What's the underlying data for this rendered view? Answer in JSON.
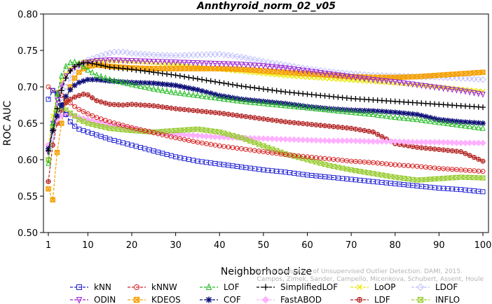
{
  "chart_data": {
    "type": "line",
    "title": "Annthyroid_norm_02_v05",
    "xlabel": "Neighborhood size",
    "ylabel": "ROC AUC",
    "xlim": [
      1,
      100
    ],
    "ylim": [
      0.5,
      0.8
    ],
    "x_ticks": [
      1,
      10,
      20,
      30,
      40,
      50,
      60,
      70,
      80,
      90,
      100
    ],
    "y_ticks": [
      "0.50",
      "0.55",
      "0.60",
      "0.65",
      "0.70",
      "0.75",
      "0.80"
    ],
    "grid": false,
    "legend_position": "bottom",
    "watermark": [
      "Campos, Zimek, Sander, Campello, Micenkova, Schubert, Assent, Houle",
      "On the Evaluation of Unsupervised Outlier Detection. DAMI, 2015."
    ],
    "series": [
      {
        "name": "kNN",
        "color": "#1f1fd4",
        "marker": "square",
        "x": [
          1,
          2,
          3,
          4,
          5,
          6,
          7,
          8,
          10,
          12,
          15,
          20,
          25,
          30,
          35,
          40,
          45,
          50,
          55,
          60,
          65,
          70,
          75,
          80,
          85,
          90,
          95,
          100
        ],
        "values": [
          0.683,
          0.695,
          0.69,
          0.675,
          0.662,
          0.652,
          0.646,
          0.642,
          0.638,
          0.634,
          0.628,
          0.62,
          0.612,
          0.604,
          0.598,
          0.594,
          0.59,
          0.586,
          0.583,
          0.579,
          0.576,
          0.573,
          0.57,
          0.567,
          0.564,
          0.561,
          0.559,
          0.556
        ]
      },
      {
        "name": "kNNW",
        "color": "#d62020",
        "marker": "circle",
        "x": [
          1,
          2,
          3,
          4,
          5,
          6,
          7,
          8,
          10,
          12,
          15,
          20,
          25,
          30,
          35,
          40,
          45,
          50,
          55,
          60,
          65,
          70,
          75,
          80,
          85,
          90,
          95,
          100
        ],
        "values": [
          0.7,
          0.695,
          0.692,
          0.688,
          0.683,
          0.678,
          0.673,
          0.669,
          0.663,
          0.658,
          0.652,
          0.644,
          0.637,
          0.63,
          0.624,
          0.619,
          0.615,
          0.611,
          0.607,
          0.604,
          0.601,
          0.598,
          0.596,
          0.593,
          0.591,
          0.588,
          0.586,
          0.584
        ]
      },
      {
        "name": "LOF",
        "color": "#22bb22",
        "marker": "triangle-up",
        "x": [
          1,
          2,
          3,
          4,
          5,
          6,
          7,
          8,
          9,
          10,
          12,
          15,
          20,
          25,
          30,
          35,
          40,
          45,
          50,
          55,
          60,
          65,
          70,
          75,
          80,
          85,
          90,
          95,
          100
        ],
        "values": [
          0.595,
          0.65,
          0.69,
          0.715,
          0.728,
          0.733,
          0.734,
          0.732,
          0.728,
          0.723,
          0.716,
          0.71,
          0.703,
          0.697,
          0.692,
          0.688,
          0.684,
          0.68,
          0.677,
          0.674,
          0.671,
          0.668,
          0.665,
          0.662,
          0.658,
          0.655,
          0.651,
          0.647,
          0.643
        ]
      },
      {
        "name": "SimplifiedLOF",
        "color": "#000000",
        "marker": "plus",
        "x": [
          1,
          2,
          3,
          4,
          5,
          6,
          7,
          8,
          9,
          10,
          12,
          15,
          20,
          25,
          30,
          35,
          40,
          45,
          50,
          55,
          60,
          65,
          70,
          75,
          80,
          85,
          90,
          95,
          100
        ],
        "values": [
          0.612,
          0.64,
          0.67,
          0.695,
          0.712,
          0.722,
          0.728,
          0.731,
          0.733,
          0.733,
          0.731,
          0.727,
          0.724,
          0.72,
          0.716,
          0.711,
          0.706,
          0.701,
          0.697,
          0.693,
          0.69,
          0.687,
          0.684,
          0.682,
          0.68,
          0.678,
          0.676,
          0.674,
          0.672
        ]
      },
      {
        "name": "LoOP",
        "color": "#e8e800",
        "marker": "x",
        "x": [
          1,
          2,
          3,
          4,
          5,
          6,
          7,
          8,
          9,
          10,
          12,
          15,
          20,
          25,
          30,
          35,
          40,
          45,
          50,
          55,
          60,
          65,
          70,
          75,
          80,
          85,
          90,
          95,
          100
        ],
        "values": [
          0.62,
          0.66,
          0.69,
          0.708,
          0.718,
          0.725,
          0.729,
          0.732,
          0.734,
          0.735,
          0.736,
          0.736,
          0.735,
          0.733,
          0.73,
          0.727,
          0.724,
          0.721,
          0.718,
          0.715,
          0.713,
          0.711,
          0.709,
          0.707,
          0.705,
          0.703,
          0.7,
          0.697,
          0.694
        ]
      },
      {
        "name": "LDOF",
        "color": "#bfbfff",
        "marker": "diamond",
        "x": [
          1,
          2,
          3,
          4,
          5,
          6,
          7,
          8,
          9,
          10,
          12,
          14,
          16,
          18,
          20,
          25,
          30,
          35,
          40,
          45,
          50,
          55,
          60,
          65,
          70,
          75,
          80,
          85,
          90,
          95,
          100
        ],
        "values": [
          0.6,
          0.63,
          0.66,
          0.685,
          0.7,
          0.712,
          0.722,
          0.729,
          0.734,
          0.737,
          0.741,
          0.745,
          0.748,
          0.748,
          0.746,
          0.744,
          0.743,
          0.744,
          0.745,
          0.741,
          0.735,
          0.73,
          0.725,
          0.721,
          0.718,
          0.716,
          0.715,
          0.714,
          0.713,
          0.712,
          0.71
        ]
      },
      {
        "name": "ODIN",
        "color": "#9a20d0",
        "marker": "triangle-down",
        "x": [
          1,
          2,
          3,
          4,
          5,
          6,
          7,
          8,
          9,
          10,
          12,
          15,
          20,
          25,
          30,
          35,
          40,
          45,
          50,
          55,
          60,
          65,
          70,
          75,
          80,
          85,
          90,
          95,
          100
        ],
        "values": [
          0.61,
          0.65,
          0.682,
          0.702,
          0.715,
          0.722,
          0.727,
          0.73,
          0.732,
          0.734,
          0.736,
          0.737,
          0.736,
          0.735,
          0.734,
          0.733,
          0.732,
          0.731,
          0.729,
          0.726,
          0.722,
          0.718,
          0.714,
          0.71,
          0.707,
          0.703,
          0.699,
          0.695,
          0.69
        ]
      },
      {
        "name": "KDEOS",
        "color": "#f5a000",
        "marker": "square-cross",
        "x": [
          1,
          2,
          3,
          4,
          5,
          6,
          7,
          8,
          9,
          10,
          12,
          15,
          20,
          25,
          30,
          35,
          40,
          45,
          50,
          55,
          60,
          65,
          70,
          75,
          80,
          85,
          90,
          95,
          100
        ],
        "values": [
          0.56,
          0.545,
          0.61,
          0.65,
          0.68,
          0.7,
          0.712,
          0.72,
          0.725,
          0.728,
          0.73,
          0.728,
          0.726,
          0.725,
          0.725,
          0.725,
          0.725,
          0.724,
          0.722,
          0.72,
          0.718,
          0.716,
          0.714,
          0.713,
          0.713,
          0.714,
          0.716,
          0.718,
          0.72
        ]
      },
      {
        "name": "COF",
        "color": "#10107a",
        "marker": "asterisk",
        "x": [
          1,
          2,
          3,
          4,
          5,
          6,
          7,
          8,
          9,
          10,
          12,
          15,
          20,
          25,
          30,
          35,
          40,
          45,
          50,
          55,
          60,
          65,
          70,
          75,
          80,
          85,
          90,
          95,
          100
        ],
        "values": [
          0.615,
          0.64,
          0.66,
          0.675,
          0.687,
          0.696,
          0.702,
          0.706,
          0.708,
          0.71,
          0.71,
          0.708,
          0.706,
          0.705,
          0.702,
          0.696,
          0.688,
          0.683,
          0.68,
          0.677,
          0.673,
          0.67,
          0.668,
          0.667,
          0.665,
          0.662,
          0.655,
          0.652,
          0.65
        ]
      },
      {
        "name": "FastABOD",
        "color": "#ffb0ff",
        "marker": "diamond-filled",
        "x": [
          1,
          2,
          3,
          4,
          5,
          6,
          7,
          8,
          10,
          12,
          15,
          20,
          25,
          30,
          35,
          40,
          45,
          50,
          55,
          60,
          65,
          70,
          75,
          80,
          85,
          90,
          95,
          100
        ],
        "values": [
          0.62,
          0.64,
          0.655,
          0.66,
          0.662,
          0.662,
          0.66,
          0.658,
          0.655,
          0.652,
          0.648,
          0.642,
          0.638,
          0.635,
          0.633,
          0.631,
          0.63,
          0.629,
          0.628,
          0.627,
          0.626,
          0.626,
          0.625,
          0.625,
          0.624,
          0.624,
          0.623,
          0.623
        ]
      },
      {
        "name": "LDF",
        "color": "#b22222",
        "marker": "circle-cross",
        "x": [
          1,
          2,
          3,
          4,
          5,
          6,
          7,
          8,
          9,
          10,
          12,
          15,
          18,
          20,
          25,
          30,
          35,
          40,
          45,
          50,
          55,
          60,
          65,
          70,
          75,
          80,
          85,
          90,
          95,
          100
        ],
        "values": [
          0.57,
          0.62,
          0.65,
          0.668,
          0.678,
          0.683,
          0.686,
          0.688,
          0.69,
          0.689,
          0.681,
          0.676,
          0.675,
          0.676,
          0.674,
          0.67,
          0.667,
          0.664,
          0.66,
          0.656,
          0.652,
          0.649,
          0.646,
          0.643,
          0.638,
          0.622,
          0.617,
          0.614,
          0.611,
          0.598
        ]
      },
      {
        "name": "INFLO",
        "color": "#99cc33",
        "marker": "hourglass",
        "x": [
          1,
          2,
          3,
          4,
          5,
          6,
          7,
          8,
          10,
          12,
          15,
          20,
          25,
          30,
          35,
          40,
          45,
          50,
          55,
          60,
          65,
          70,
          75,
          80,
          85,
          90,
          95,
          100
        ],
        "values": [
          0.6,
          0.645,
          0.668,
          0.672,
          0.668,
          0.664,
          0.66,
          0.655,
          0.65,
          0.647,
          0.643,
          0.64,
          0.638,
          0.64,
          0.642,
          0.638,
          0.63,
          0.619,
          0.608,
          0.6,
          0.592,
          0.586,
          0.581,
          0.576,
          0.572,
          0.574,
          0.576,
          0.575
        ]
      }
    ],
    "legend_layout": [
      [
        "kNN",
        "kNNW",
        "LOF",
        "SimplifiedLOF",
        "LoOP",
        "LDOF"
      ],
      [
        "ODIN",
        "KDEOS",
        "COF",
        "FastABOD",
        "LDF",
        "INFLO"
      ]
    ]
  }
}
